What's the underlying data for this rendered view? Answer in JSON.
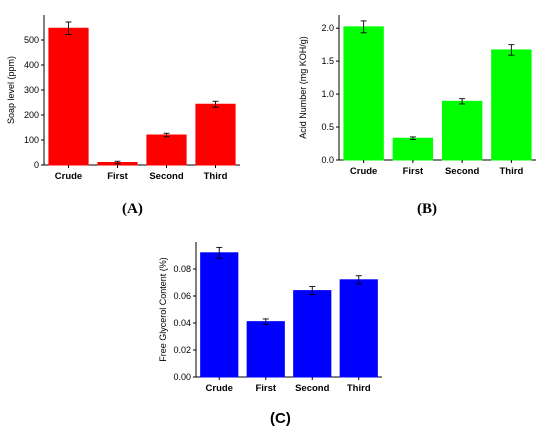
{
  "panel_labels": {
    "a": "(A)",
    "b": "(B)",
    "c": "(C)"
  },
  "chart_data": [
    {
      "id": "A",
      "type": "bar",
      "categories": [
        "Crude",
        "First",
        "Second",
        "Third"
      ],
      "values": [
        547,
        10,
        120,
        243
      ],
      "errors": [
        25,
        5,
        7,
        12
      ],
      "ylabel": "Soap level (ppm)",
      "xlabel": "",
      "ylim": [
        0,
        600
      ],
      "yticks": [
        0,
        100,
        200,
        300,
        400,
        500
      ],
      "ytick_labels": [
        "0",
        "100",
        "200",
        "300",
        "400",
        "500"
      ],
      "color": "#ff0000"
    },
    {
      "id": "B",
      "type": "bar",
      "categories": [
        "Crude",
        "First",
        "Second",
        "Third"
      ],
      "values": [
        2.02,
        0.33,
        0.89,
        1.67
      ],
      "errors": [
        0.09,
        0.02,
        0.04,
        0.08
      ],
      "ylabel": "Acid Number (mg KOH/g)",
      "xlabel": "",
      "ylim": [
        0,
        2.2
      ],
      "yticks": [
        0,
        0.5,
        1.0,
        1.5,
        2.0
      ],
      "ytick_labels": [
        "0.0",
        "0.5",
        "1.0",
        "1.5",
        "2.0"
      ],
      "color": "#00ff00"
    },
    {
      "id": "C",
      "type": "bar",
      "categories": [
        "Crude",
        "First",
        "Second",
        "Third"
      ],
      "values": [
        0.092,
        0.041,
        0.064,
        0.072
      ],
      "errors": [
        0.004,
        0.002,
        0.003,
        0.003
      ],
      "ylabel": "Free Glycerol Content (%)",
      "xlabel": "",
      "ylim": [
        0,
        0.1
      ],
      "yticks": [
        0,
        0.02,
        0.04,
        0.06,
        0.08
      ],
      "ytick_labels": [
        "0.00",
        "0.02",
        "0.04",
        "0.06",
        "0.08"
      ],
      "color": "#0000ff"
    }
  ]
}
